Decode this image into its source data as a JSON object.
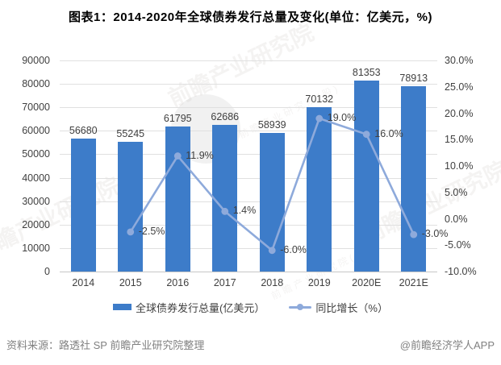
{
  "title": "图表1：2014-2020年全球债券发行总量及变化(单位：亿美元，%)",
  "chart_data": {
    "type": "bar+line",
    "categories": [
      "2014",
      "2015",
      "2016",
      "2017",
      "2018",
      "2019",
      "2020E",
      "2021E"
    ],
    "series": [
      {
        "name": "全球债券发行总量(亿美元）",
        "type": "bar",
        "axis": "left",
        "values": [
          56680,
          55245,
          61795,
          62686,
          58939,
          70132,
          81353,
          78913
        ],
        "data_labels": [
          "56680",
          "55245",
          "61795",
          "62686",
          "58939",
          "70132",
          "81353",
          "78913"
        ],
        "color": "#3D7CC9"
      },
      {
        "name": "同比增长（%）",
        "type": "line",
        "axis": "right",
        "values": [
          null,
          -2.5,
          11.9,
          1.4,
          -6.0,
          19.0,
          16.0,
          -3.0
        ],
        "data_labels": [
          "",
          "-2.5%",
          "11.9%",
          "1.4%",
          "-6.0%",
          "19.0%",
          "16.0%",
          "-3.0%"
        ],
        "color": "#8EAADB"
      }
    ],
    "left_axis": {
      "min": 0,
      "max": 90000,
      "step": 10000,
      "ticks": [
        "90000",
        "80000",
        "70000",
        "60000",
        "50000",
        "40000",
        "30000",
        "20000",
        "10000",
        "0"
      ]
    },
    "right_axis": {
      "min": -10,
      "max": 30,
      "step": 5,
      "ticks": [
        "30.0%",
        "25.0%",
        "20.0%",
        "15.0%",
        "10.0%",
        "5.0%",
        "0.0%",
        "-5.0%",
        "-10.0%"
      ]
    },
    "grid": true,
    "legend_position": "bottom"
  },
  "legend": [
    {
      "label": "全球债券发行总量(亿美元）",
      "color": "#3D7CC9",
      "marker": "bar-swatch"
    },
    {
      "label": "同比增长（%）",
      "color": "#8EAADB",
      "marker": "line-dot-swatch"
    }
  ],
  "footer": {
    "source": "资料来源：路透社 SP 前瞻产业研究院整理",
    "credit": "@前瞻经济学人APP"
  },
  "watermark": {
    "text": "前瞻产业研究院",
    "subtext": "前 瞻 产 业 研 究 院 ( 股 )"
  },
  "colors": {
    "bar": "#3D7CC9",
    "line": "#8EAADB",
    "grid": "#e0e0e0",
    "axis": "#c6c6c6",
    "text": "#404040"
  }
}
